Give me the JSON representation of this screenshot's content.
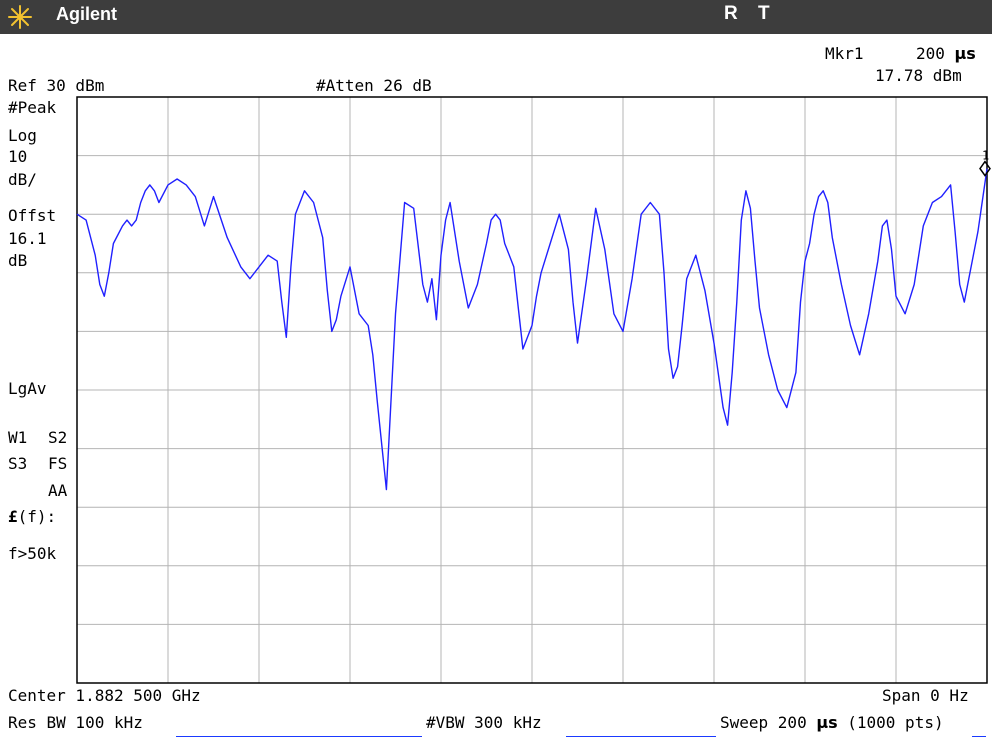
{
  "header": {
    "brand": "Agilent",
    "mode_r": "R",
    "mode_t": "T"
  },
  "marker": {
    "label": "Mkr1",
    "time": "200 ",
    "time_unit": "μs",
    "amplitude": "17.78 dBm",
    "id": "1"
  },
  "settings": {
    "ref_level": "Ref 30 dBm",
    "attenuation": "#Atten 26 dB"
  },
  "left_panel": {
    "detector": "#Peak",
    "scale_type": "Log",
    "scale_value": "10",
    "scale_unit": "dB/",
    "offset_label": "Offst",
    "offset_value": "16.1",
    "offset_unit": "dB",
    "averaging": "LgAv",
    "w1": "W1",
    "s2": "S2",
    "s3": "S3",
    "fs": "FS",
    "aa": "AA",
    "ef_symbol": "£",
    "ef_suffix": "(f):",
    "f_cond": "f>50k"
  },
  "footer": {
    "center": "Center 1.882 500 GHz",
    "span": "Span 0 Hz",
    "res_bw": "Res BW 100 kHz",
    "vbw": "#VBW 300 kHz",
    "sweep_prefix": "Sweep 200 ",
    "sweep_unit": "μs",
    "sweep_suffix": " (1000 pts)"
  },
  "colors": {
    "trace": "#2020ff",
    "grid": "#b4b4b4",
    "titlebar": "#3d3d3d",
    "underline": "#1a3aff"
  },
  "chart_data": {
    "type": "line",
    "x_unit": "μs",
    "y_unit": "dBm",
    "xlim": [
      0,
      200
    ],
    "ylim": [
      -70,
      30
    ],
    "grid": true,
    "marker": {
      "x": 200,
      "y": 17.78
    },
    "series": [
      {
        "x": [
          0,
          2,
          4,
          5,
          6,
          7,
          8,
          10,
          11,
          12,
          13,
          14,
          15,
          16,
          17,
          18,
          20,
          22,
          24,
          26,
          28,
          30,
          33,
          36,
          38,
          40,
          42,
          44,
          45,
          46,
          47,
          48,
          50,
          52,
          54,
          55,
          56,
          57,
          58,
          60,
          62,
          64,
          65,
          66,
          68,
          70,
          72,
          74,
          76,
          77,
          78,
          79,
          80,
          81,
          82,
          84,
          86,
          88,
          90,
          91,
          92,
          93,
          94,
          95,
          96,
          97,
          98,
          100,
          101,
          102,
          104,
          106,
          108,
          109,
          110,
          112,
          114,
          116,
          118,
          120,
          122,
          124,
          126,
          128,
          129,
          130,
          131,
          132,
          133,
          134,
          136,
          138,
          140,
          142,
          143,
          144,
          145,
          146,
          147,
          148,
          149,
          150,
          152,
          154,
          156,
          158,
          159,
          160,
          161,
          162,
          163,
          164,
          165,
          166,
          168,
          170,
          172,
          174,
          176,
          177,
          178,
          179,
          180,
          182,
          184,
          186,
          188,
          190,
          192,
          193,
          194,
          195,
          196,
          198,
          200
        ],
        "y": [
          10,
          9,
          3,
          -2,
          -4,
          0,
          5,
          8,
          9,
          8,
          9,
          12,
          14,
          15,
          14,
          12,
          15,
          16,
          15,
          13,
          8,
          13,
          6,
          1,
          -1,
          1,
          3,
          2,
          -5,
          -11,
          1,
          10,
          14,
          12,
          6,
          -3,
          -10,
          -8,
          -4,
          1,
          -7,
          -9,
          -14,
          -22,
          -37,
          -7,
          12,
          11,
          -2,
          -5,
          -1,
          -8,
          3,
          9,
          12,
          2,
          -6,
          -2,
          5,
          9,
          10,
          9,
          5,
          3,
          1,
          -6,
          -13,
          -9,
          -4,
          0,
          5,
          10,
          4,
          -5,
          -12,
          -1,
          11,
          4,
          -7,
          -10,
          -1,
          10,
          12,
          10,
          0,
          -13,
          -18,
          -16,
          -9,
          -1,
          3,
          -3,
          -12,
          -23,
          -26,
          -17,
          -5,
          9,
          14,
          11,
          2,
          -6,
          -14,
          -20,
          -23,
          -17,
          -5,
          2,
          5,
          10,
          13,
          14,
          12,
          6,
          -2,
          -9,
          -14,
          -7,
          2,
          8,
          9,
          4,
          -4,
          -7,
          -2,
          8,
          12,
          13,
          15,
          7,
          -2,
          -5,
          -1,
          7,
          17.78
        ]
      }
    ]
  }
}
